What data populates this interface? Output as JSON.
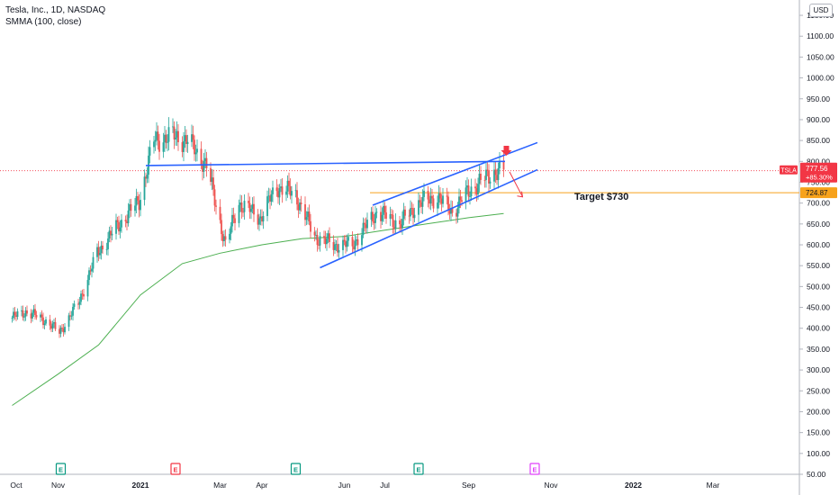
{
  "legend": {
    "symbol_line": "Tesla, Inc., 1D, NASDAQ",
    "indicator_line": "SMMA (100, close)"
  },
  "price_scale": {
    "currency": "USD",
    "ticks": [
      "50.00",
      "100.00",
      "150.00",
      "200.00",
      "250.00",
      "300.00",
      "350.00",
      "400.00",
      "450.00",
      "500.00",
      "550.00",
      "600.00",
      "650.00",
      "700.00",
      "750.00",
      "800.00",
      "850.00",
      "900.00",
      "950.00",
      "1000.00",
      "1050.00",
      "1100.00",
      "1150.00"
    ]
  },
  "time_scale": {
    "ticks": [
      "Oct",
      "Nov",
      "2021",
      "Mar",
      "Apr",
      "Jun",
      "Jul",
      "Sep",
      "Nov",
      "2022",
      "Mar"
    ]
  },
  "badges": {
    "ticker": "TSLA",
    "last_price": "777.56",
    "change_pct": "+85.30%",
    "target_level": "724.87"
  },
  "annotations": {
    "target_text": "Target $730"
  },
  "events": [
    {
      "label": "E",
      "month": "Nov",
      "color": "#089981"
    },
    {
      "label": "E",
      "month": "2021",
      "color": "#f23645"
    },
    {
      "label": "E",
      "month": "Apr",
      "color": "#089981"
    },
    {
      "label": "E",
      "month": "Jul",
      "color": "#089981"
    },
    {
      "label": "E",
      "month": "Oct",
      "color": "#e040fb"
    }
  ],
  "colors": {
    "up": "#26a69a",
    "down": "#ef5350",
    "smma": "#4caf50",
    "trendline": "#2962ff",
    "target_line": "#f7a21b",
    "arrow": "#f23645",
    "last_price": "#f23645"
  },
  "chart_data": {
    "type": "candlestick",
    "title": "Tesla, Inc., 1D, NASDAQ",
    "ylim": [
      50,
      1150
    ],
    "price_keypoints": [
      [
        "2020-09-28",
        425
      ],
      [
        "2020-10-08",
        440
      ],
      [
        "2020-10-22",
        420
      ],
      [
        "2020-11-02",
        390
      ],
      [
        "2020-11-16",
        460
      ],
      [
        "2020-11-30",
        580
      ],
      [
        "2020-12-14",
        640
      ],
      [
        "2020-12-31",
        705
      ],
      [
        "2021-01-11",
        850
      ],
      [
        "2021-01-25",
        860
      ],
      [
        "2021-02-05",
        850
      ],
      [
        "2021-02-19",
        790
      ],
      [
        "2021-03-05",
        600
      ],
      [
        "2021-03-15",
        700
      ],
      [
        "2021-03-31",
        665
      ],
      [
        "2021-04-12",
        740
      ],
      [
        "2021-04-26",
        720
      ],
      [
        "2021-05-10",
        620
      ],
      [
        "2021-05-24",
        600
      ],
      [
        "2021-06-07",
        600
      ],
      [
        "2021-06-25",
        680
      ],
      [
        "2021-07-12",
        650
      ],
      [
        "2021-07-26",
        700
      ],
      [
        "2021-08-09",
        715
      ],
      [
        "2021-08-20",
        680
      ],
      [
        "2021-09-03",
        735
      ],
      [
        "2021-09-20",
        775
      ],
      [
        "2021-09-27",
        777.56
      ]
    ],
    "smma_keypoints": [
      [
        "2020-09-28",
        215
      ],
      [
        "2020-11-01",
        290
      ],
      [
        "2020-12-01",
        360
      ],
      [
        "2021-01-01",
        480
      ],
      [
        "2021-02-01",
        555
      ],
      [
        "2021-03-01",
        580
      ],
      [
        "2021-04-01",
        600
      ],
      [
        "2021-05-01",
        615
      ],
      [
        "2021-06-01",
        620
      ],
      [
        "2021-07-01",
        635
      ],
      [
        "2021-08-01",
        650
      ],
      [
        "2021-09-01",
        665
      ],
      [
        "2021-09-27",
        675
      ]
    ],
    "drawings": {
      "horizontal_resistance": {
        "from": [
          "2021-01-05",
          790
        ],
        "to": [
          "2021-09-28",
          800
        ]
      },
      "channel_upper": {
        "from": [
          "2021-06-22",
          695
        ],
        "to": [
          "2021-10-22",
          845
        ]
      },
      "channel_lower": {
        "from": [
          "2021-05-14",
          545
        ],
        "to": [
          "2021-10-22",
          780
        ]
      },
      "target_level": 724.87,
      "projection_arrow": {
        "from": [
          "2021-09-28",
          775
        ],
        "to": [
          "2021-10-01",
          715
        ]
      }
    }
  }
}
